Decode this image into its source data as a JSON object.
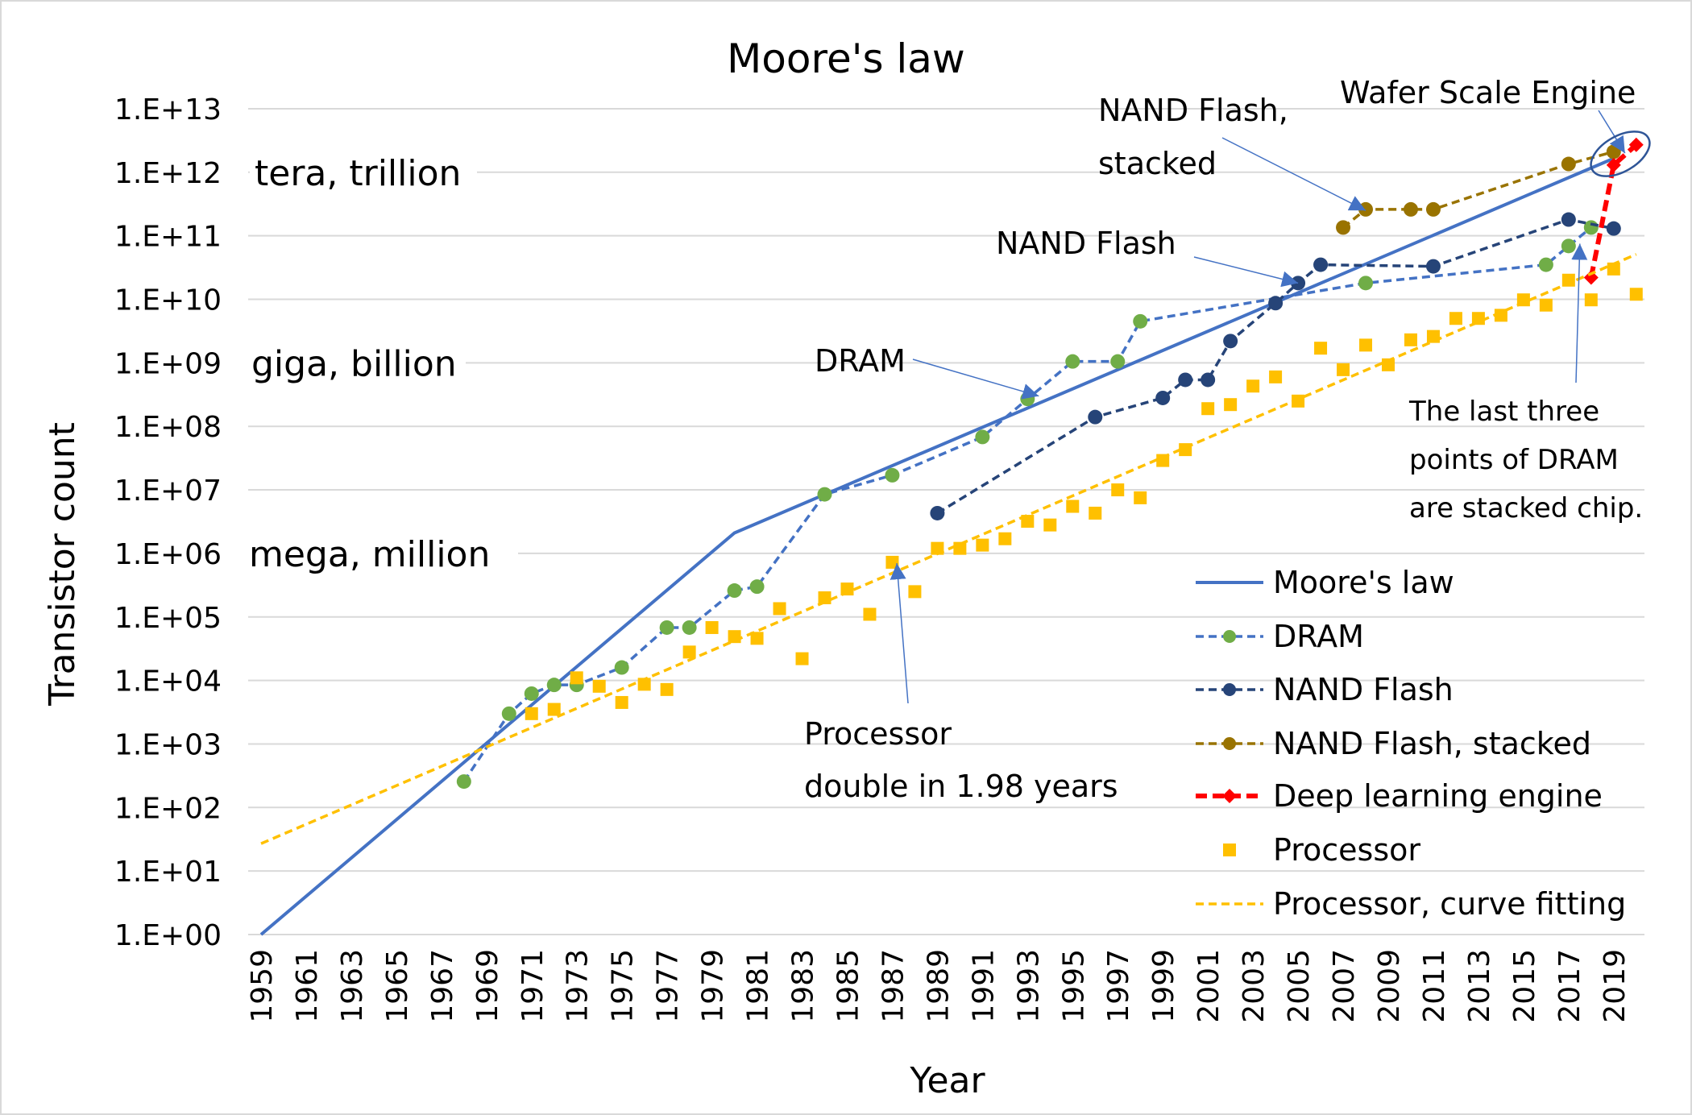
{
  "chart_data": {
    "type": "line",
    "title": "Moore's law",
    "xlabel": "Year",
    "ylabel": "Transistor count",
    "xlim": [
      1959,
      2020
    ],
    "ylim": [
      1,
      10000000000000
    ],
    "yscale": "log",
    "grid": true,
    "legend_position": "bottom-right",
    "x_tick_labels": [
      "1959",
      "1961",
      "1963",
      "1965",
      "1967",
      "1969",
      "1971",
      "1973",
      "1975",
      "1977",
      "1979",
      "1981",
      "1983",
      "1985",
      "1987",
      "1989",
      "1991",
      "1993",
      "1995",
      "1997",
      "1999",
      "2001",
      "2003",
      "2005",
      "2007",
      "2009",
      "2011",
      "2013",
      "2015",
      "2017",
      "2019"
    ],
    "y_tick_labels": [
      "1.E+00",
      "1.E+01",
      "1.E+02",
      "1.E+03",
      "1.E+04",
      "1.E+05",
      "1.E+06",
      "1.E+07",
      "1.E+08",
      "1.E+09",
      "1.E+10",
      "1.E+11",
      "1.E+12",
      "1.E+13"
    ],
    "series": [
      {
        "name": "Moore's law",
        "style": "solid",
        "color": "#4472C4",
        "marker": "none",
        "x": [
          1959,
          1980,
          2019
        ],
        "y": [
          1,
          2100000,
          1650000000000
        ]
      },
      {
        "name": "DRAM",
        "style": "dashed",
        "color": "#4472C4",
        "marker": "circle",
        "marker_color": "#70AD47",
        "x": [
          1968,
          1970,
          1971,
          1972,
          1973,
          1975,
          1977,
          1978,
          1980,
          1981,
          1984,
          1987,
          1991,
          1993,
          1995,
          1997,
          1998,
          2008,
          2016,
          2017,
          2018
        ],
        "y": [
          256,
          3000,
          6200,
          8500,
          8500,
          16000,
          68000,
          68000,
          260000,
          300000,
          8500000,
          17000000,
          68000000,
          270000000,
          1050000000,
          1050000000,
          4500000000,
          18000000000,
          35000000000,
          69000000000,
          135000000000
        ]
      },
      {
        "name": "NAND Flash",
        "style": "dashed",
        "color": "#264478",
        "marker": "circle",
        "marker_color": "#264478",
        "x": [
          1989,
          1996,
          1999,
          2000,
          2001,
          2002,
          2004,
          2005,
          2006,
          2011,
          2017,
          2019
        ],
        "y": [
          4300000,
          140000000,
          280000000,
          540000000,
          540000000,
          2200000000,
          8700000000,
          18000000000,
          35000000000,
          33000000000,
          180000000000,
          130000000000
        ]
      },
      {
        "name": "NAND Flash, stacked",
        "style": "dashed",
        "color": "#997300",
        "marker": "circle",
        "marker_color": "#997300",
        "x": [
          2007,
          2008,
          2010,
          2011,
          2017,
          2019
        ],
        "y": [
          135000000000,
          260000000000,
          260000000000,
          260000000000,
          1350000000000,
          2100000000000
        ]
      },
      {
        "name": "Deep learning engine",
        "style": "dashed-thick",
        "color": "#FF0000",
        "marker": "diamond",
        "marker_color": "#FF0000",
        "x": [
          2018,
          2019,
          2020
        ],
        "y": [
          22000000000,
          1300000000000,
          2700000000000
        ]
      },
      {
        "name": "Processor",
        "style": "none",
        "color": "#FFC000",
        "marker": "square",
        "marker_color": "#FFC000",
        "x": [
          1971,
          1972,
          1973,
          1974,
          1975,
          1976,
          1977,
          1978,
          1979,
          1980,
          1981,
          1982,
          1983,
          1984,
          1985,
          1986,
          1987,
          1988,
          1989,
          1990,
          1991,
          1992,
          1993,
          1994,
          1995,
          1996,
          1997,
          1998,
          1999,
          2000,
          2001,
          2002,
          2003,
          2004,
          2005,
          2006,
          2007,
          2008,
          2009,
          2010,
          2011,
          2012,
          2013,
          2014,
          2015,
          2016,
          2017,
          2018,
          2019,
          2020
        ],
        "y": [
          3000,
          3500,
          11000,
          8100,
          4500,
          8700,
          7200,
          28000,
          68000,
          49000,
          46000,
          135000,
          22000,
          200000,
          275000,
          110000,
          725000,
          250000,
          1200000,
          1200000,
          1350000,
          1700000,
          3200000,
          2800000,
          5500000,
          4300000,
          10000000,
          7500000,
          29000000,
          43000000,
          190000000,
          220000000,
          430000000,
          600000000,
          250000000,
          1700000000,
          780000000,
          1900000000,
          930000000,
          2300000000,
          2600000000,
          5000000000,
          5000000000,
          5600000000,
          9800000000,
          8100000000,
          20000000000,
          9800000000,
          30000000000,
          12000000000
        ]
      },
      {
        "name": "Processor, curve fitting",
        "style": "dashed",
        "color": "#FFC000",
        "marker": "none",
        "x": [
          1959,
          2020
        ],
        "y": [
          27,
          51000000000
        ]
      }
    ],
    "annotations": [
      {
        "id": "tera",
        "text": "tera, trillion",
        "y": 1000000000000
      },
      {
        "id": "giga",
        "text": "giga, billion",
        "y": 1000000000
      },
      {
        "id": "mega",
        "text": "mega, million",
        "y": 1000000
      },
      {
        "id": "nand_stacked",
        "lines": [
          "NAND Flash,",
          "stacked"
        ],
        "points_to": [
          2008,
          250000000000
        ]
      },
      {
        "id": "wse",
        "lines": [
          "Wafer Scale Engine"
        ],
        "points_to": [
          2019.5,
          2000000000000
        ]
      },
      {
        "id": "nand",
        "lines": [
          "NAND Flash"
        ],
        "points_to": [
          2005,
          18000000000
        ]
      },
      {
        "id": "dram",
        "lines": [
          "DRAM"
        ],
        "points_to": [
          1993.5,
          300000000
        ]
      },
      {
        "id": "proc",
        "lines": [
          "Processor",
          "double in 1.98 years"
        ],
        "points_to": [
          1987.2,
          700000
        ]
      },
      {
        "id": "stacked_dram",
        "lines": [
          "The last three",
          "points of DRAM",
          "are stacked chip."
        ],
        "points_to": [
          2017.5,
          75000000000
        ]
      }
    ]
  }
}
